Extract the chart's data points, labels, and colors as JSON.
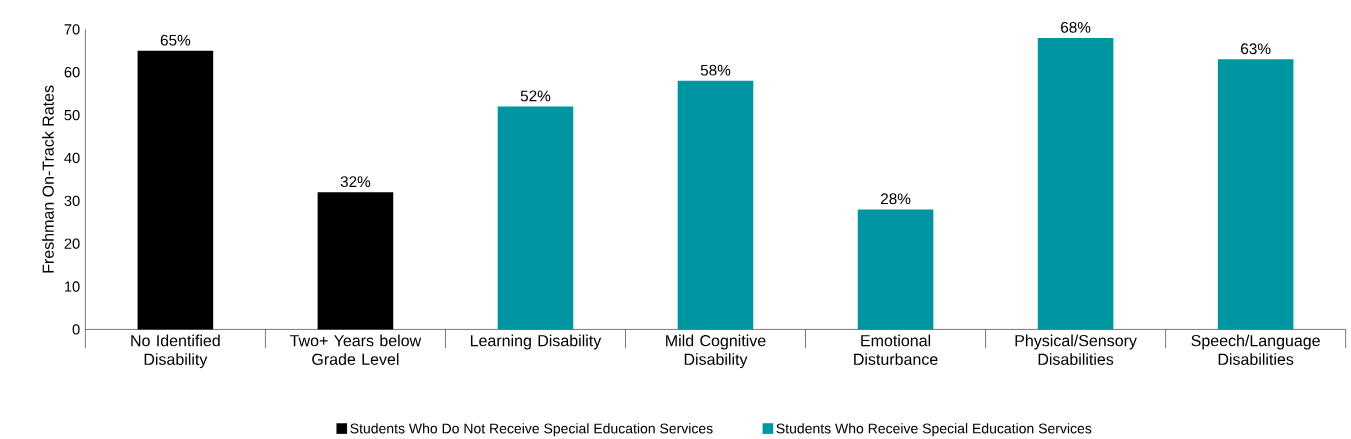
{
  "chart_data": {
    "type": "bar",
    "ylabel": "Freshman On-Track Rates",
    "categories": [
      "No Identified Disability",
      "Two+ Years below Grade Level",
      "Learning Disability",
      "Mild Cognitive Disability",
      "Emotional Disturbance",
      "Physical/Sensory Disabilities",
      "Speech/Language Disabilities"
    ],
    "series": [
      {
        "name": "Students Who Do Not Receive Special Education Services",
        "color": "#000000",
        "values": [
          65,
          32,
          null,
          null,
          null,
          null,
          null
        ],
        "value_labels": [
          "65%",
          "32%",
          null,
          null,
          null,
          null,
          null
        ]
      },
      {
        "name": "Students Who Receive Special Education Services",
        "color": "#0096a1",
        "values": [
          null,
          null,
          52,
          58,
          28,
          68,
          63
        ],
        "value_labels": [
          null,
          null,
          "52%",
          "58%",
          "28%",
          "68%",
          "63%"
        ]
      }
    ],
    "ylim": [
      0,
      70
    ],
    "yticks": [
      0,
      10,
      20,
      30,
      40,
      50,
      60,
      70
    ],
    "legend": "bottom"
  }
}
